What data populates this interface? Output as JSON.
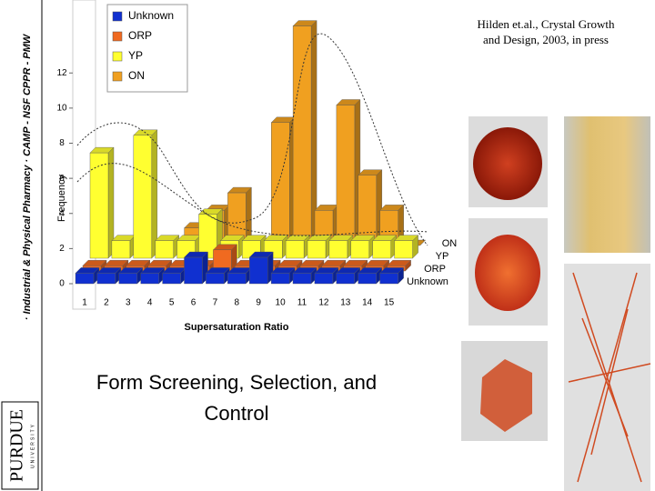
{
  "sidebar": "· Industrial & Physical Pharmacy · CAMP - NSF CPPR - PMW",
  "logo": "PURDUE",
  "logo_sub": "UNIVERSITY",
  "citation": "Hilden et.al., Crystal Growth and Design, 2003, in press",
  "caption": "Form Screening, Selection, and Control",
  "chart_data": {
    "type": "bar3d",
    "y_label": "Frequency",
    "x_label": "Supersaturation Ratio",
    "categories": [
      "1",
      "2",
      "3",
      "4",
      "5",
      "6",
      "7",
      "8",
      "9",
      "10",
      "11",
      "12",
      "13",
      "14",
      "15"
    ],
    "series": [
      {
        "name": "Unknown",
        "color": "#1030d0",
        "values": [
          0.6,
          0.6,
          0.6,
          0.6,
          0.6,
          1.5,
          0.6,
          0.6,
          1.5,
          0.6,
          0.6,
          0.6,
          0.6,
          0.6,
          0.6
        ]
      },
      {
        "name": "ORP",
        "color": "#f06a20",
        "values": [
          0.3,
          0.3,
          0.3,
          0.3,
          0.3,
          0.3,
          1.2,
          0.3,
          0.3,
          0.3,
          0.3,
          0.3,
          0.3,
          0.3,
          0.3
        ]
      },
      {
        "name": "YP",
        "color": "#ffff30",
        "values": [
          6,
          1,
          7,
          1,
          1,
          2.5,
          1,
          1,
          1,
          1,
          1,
          1,
          1,
          1,
          1
        ]
      },
      {
        "name": "ON",
        "color": "#f0a020",
        "values": [
          0,
          0,
          0,
          0,
          1,
          2,
          3,
          0,
          7,
          12.5,
          2,
          8,
          4,
          2,
          0
        ]
      }
    ],
    "ylim": [
      0,
      16
    ],
    "yticks": [
      0,
      2,
      4,
      6,
      8,
      10,
      12
    ]
  }
}
